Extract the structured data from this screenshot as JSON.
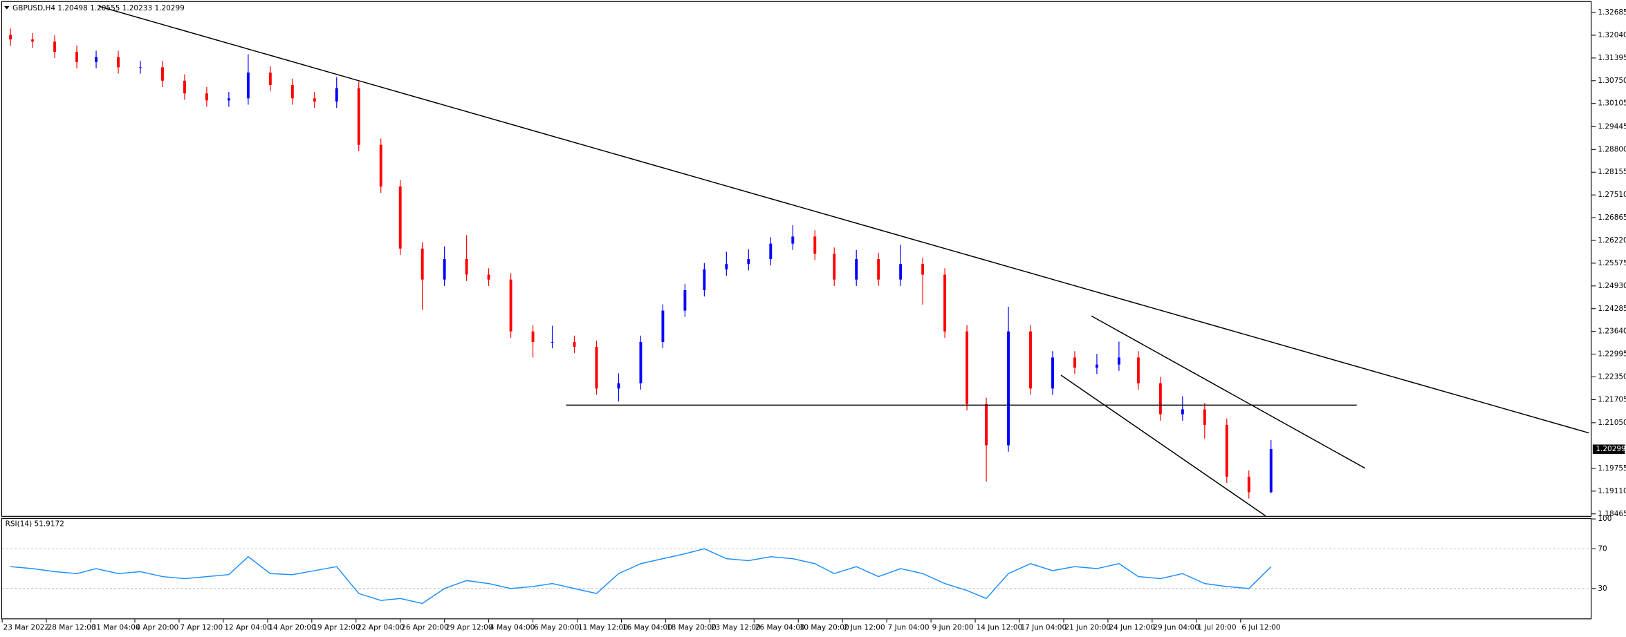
{
  "chart_data": {
    "type": "candlestick",
    "title": "GBPUSD,H4  1.20498 1.20555 1.20233 1.20299",
    "x": [
      3,
      11,
      19,
      27,
      34,
      42,
      50,
      58,
      66,
      74,
      82,
      89,
      97,
      105,
      113,
      121,
      129,
      137,
      144,
      152,
      160,
      168,
      176,
      184,
      192,
      199,
      207,
      215,
      223,
      231,
      239,
      247,
      254,
      262,
      270,
      278,
      286,
      294,
      301,
      309,
      317,
      325,
      333,
      341,
      349,
      356,
      364,
      372,
      380,
      388,
      396,
      404,
      411,
      419,
      427,
      435,
      443,
      451,
      459
    ],
    "open": [
      1.3205,
      1.3192,
      1.3186,
      1.3157,
      1.3128,
      1.3142,
      1.3113,
      1.3113,
      1.3075,
      1.3039,
      1.3019,
      1.3025,
      1.3098,
      1.3063,
      1.3025,
      1.3016,
      1.3054,
      1.2893,
      1.2775,
      1.2599,
      1.2511,
      1.2569,
      1.2525,
      1.2511,
      1.2364,
      1.2334,
      1.2334,
      1.232,
      1.2202,
      1.2217,
      1.2334,
      1.2423,
      1.2481,
      1.254,
      1.2555,
      1.2569,
      1.2613,
      1.2633,
      1.2584,
      1.2511,
      1.2569,
      1.2511,
      1.2555,
      1.2525,
      1.2364,
      1.2158,
      1.2041,
      1.2364,
      1.2202,
      1.229,
      1.2261,
      1.227,
      1.229,
      1.2217,
      1.2129,
      1.2143,
      1.2099,
      1.1952,
      1.1908
    ],
    "high": [
      1.3223,
      1.321,
      1.3204,
      1.3175,
      1.316,
      1.316,
      1.3131,
      1.3131,
      1.3093,
      1.3057,
      1.3043,
      1.315,
      1.3116,
      1.3081,
      1.3043,
      1.3085,
      1.3072,
      1.2911,
      1.2793,
      1.2617,
      1.2605,
      1.2637,
      1.2543,
      1.2529,
      1.2382,
      1.238,
      1.2352,
      1.2338,
      1.2245,
      1.2352,
      1.2441,
      1.2499,
      1.2558,
      1.259,
      1.2597,
      1.2631,
      1.2665,
      1.2651,
      1.2602,
      1.2595,
      1.2587,
      1.261,
      1.2573,
      1.2543,
      1.2382,
      1.2176,
      1.2434,
      1.2382,
      1.2308,
      1.2308,
      1.23,
      1.2335,
      1.2308,
      1.2235,
      1.218,
      1.2161,
      1.2117,
      1.197,
      1.2056
    ],
    "low": [
      1.3174,
      1.3168,
      1.3139,
      1.311,
      1.311,
      1.3095,
      1.3095,
      1.3057,
      1.3021,
      1.3001,
      1.3001,
      1.3007,
      1.3045,
      1.3007,
      1.2998,
      1.2998,
      1.2875,
      1.2757,
      1.2581,
      1.2425,
      1.2493,
      1.2507,
      1.2493,
      1.2346,
      1.229,
      1.2316,
      1.2302,
      1.2184,
      1.2165,
      1.2199,
      1.2316,
      1.2405,
      1.2463,
      1.2522,
      1.2537,
      1.2551,
      1.2595,
      1.2566,
      1.2493,
      1.2493,
      1.2493,
      1.2493,
      1.244,
      1.2346,
      1.214,
      1.1938,
      1.2023,
      1.2184,
      1.2184,
      1.2243,
      1.2243,
      1.2252,
      1.2199,
      1.2111,
      1.2111,
      1.206,
      1.1934,
      1.189,
      1.1905
    ],
    "close": [
      1.3192,
      1.3186,
      1.3157,
      1.3128,
      1.3142,
      1.3113,
      1.3113,
      1.3075,
      1.3039,
      1.3019,
      1.3025,
      1.3098,
      1.3063,
      1.3025,
      1.3016,
      1.3054,
      1.2893,
      1.2775,
      1.2599,
      1.2511,
      1.2569,
      1.2525,
      1.2511,
      1.2364,
      1.2334,
      1.2334,
      1.232,
      1.2202,
      1.2217,
      1.2334,
      1.2423,
      1.2481,
      1.254,
      1.2555,
      1.2569,
      1.2613,
      1.2633,
      1.2584,
      1.2511,
      1.2569,
      1.2511,
      1.2555,
      1.2525,
      1.2364,
      1.2158,
      1.2041,
      1.2364,
      1.2202,
      1.229,
      1.2261,
      1.227,
      1.229,
      1.2217,
      1.2129,
      1.2143,
      1.2099,
      1.1952,
      1.1908,
      1.203
    ],
    "up_color": "#0000ff",
    "down_color": "#ff0000",
    "xlim": [
      0,
      575
    ],
    "xticks": [
      {
        "value": 0,
        "label": "23 Mar 2022"
      },
      {
        "value": 16,
        "label": "28 Mar 12:00"
      },
      {
        "value": 32,
        "label": "31 Mar 04:00"
      },
      {
        "value": 48,
        "label": "4 Apr 20:00"
      },
      {
        "value": 64,
        "label": "7 Apr 12:00"
      },
      {
        "value": 80,
        "label": "12 Apr 04:00"
      },
      {
        "value": 96,
        "label": "14 Apr 20:00"
      },
      {
        "value": 112,
        "label": "19 Apr 12:00"
      },
      {
        "value": 128,
        "label": "22 Apr 04:00"
      },
      {
        "value": 144,
        "label": "26 Apr 20:00"
      },
      {
        "value": 160,
        "label": "29 Apr 12:00"
      },
      {
        "value": 176,
        "label": "4 May 04:00"
      },
      {
        "value": 192,
        "label": "6 May 20:00"
      },
      {
        "value": 208,
        "label": "11 May 12:00"
      },
      {
        "value": 224,
        "label": "16 May 04:00"
      },
      {
        "value": 240,
        "label": "18 May 20:00"
      },
      {
        "value": 256,
        "label": "23 May 12:00"
      },
      {
        "value": 272,
        "label": "26 May 04:00"
      },
      {
        "value": 288,
        "label": "30 May 20:00"
      },
      {
        "value": 304,
        "label": "2 Jun 12:00"
      },
      {
        "value": 320,
        "label": "7 Jun 04:00"
      },
      {
        "value": 336,
        "label": "9 Jun 20:00"
      },
      {
        "value": 352,
        "label": "14 Jun 12:00"
      },
      {
        "value": 368,
        "label": "17 Jun 04:00"
      },
      {
        "value": 384,
        "label": "21 Jun 20:00"
      },
      {
        "value": 400,
        "label": "24 Jun 12:00"
      },
      {
        "value": 416,
        "label": "29 Jun 04:00"
      },
      {
        "value": 432,
        "label": "1 Jul 20:00"
      },
      {
        "value": 448,
        "label": "6 Jul 12:00"
      }
    ],
    "ylim": [
      1.1841,
      1.3298
    ],
    "yticks": [
      1.32685,
      {
        "value": 1.3204,
        "label": "1.32040"
      },
      1.31395,
      {
        "value": 1.3075,
        "label": "1.30750"
      },
      1.30105,
      1.29445,
      {
        "value": 1.288,
        "label": "1.28800"
      },
      1.28155,
      {
        "value": 1.2751,
        "label": "1.27510"
      },
      1.26865,
      {
        "value": 1.2622,
        "label": "1.26220"
      },
      1.25575,
      {
        "value": 1.2493,
        "label": "1.24930"
      },
      1.24285,
      {
        "value": 1.2364,
        "label": "1.23640"
      },
      1.22995,
      {
        "value": 1.2235,
        "label": "1.22350"
      },
      1.21705,
      {
        "value": 1.2105,
        "label": "1.21050"
      },
      1.19755,
      {
        "value": 1.1911,
        "label": "1.19110"
      },
      1.18465
    ],
    "current_price": 1.20299,
    "line_color": "#000000",
    "lines": [
      {
        "x": [
          35,
          574
        ],
        "y": [
          1.3286,
          1.2076
        ]
      },
      {
        "x": [
          204,
          490
        ],
        "y": [
          1.2155,
          1.2155
        ]
      },
      {
        "x": [
          394,
          493
        ],
        "y": [
          1.2408,
          1.1976
        ]
      },
      {
        "x": [
          383,
          457
        ],
        "y": [
          1.224,
          1.1841
        ]
      }
    ],
    "rsi": {
      "title": "RSI(14) 51.9172",
      "color": "#1e90ff",
      "values": [
        52,
        50,
        47,
        45,
        50,
        45,
        47,
        42,
        40,
        42,
        44,
        62,
        45,
        44,
        48,
        52,
        25,
        18,
        20,
        15,
        30,
        38,
        35,
        30,
        32,
        35,
        30,
        25,
        45,
        55,
        60,
        65,
        70,
        60,
        58,
        62,
        60,
        55,
        45,
        52,
        42,
        50,
        45,
        35,
        28,
        20,
        45,
        55,
        48,
        52,
        50,
        55,
        42,
        40,
        45,
        35,
        32,
        30,
        51.9172
      ],
      "ylim": [
        0,
        100
      ],
      "yticks": [
        100,
        70,
        30
      ],
      "levels": [
        70,
        30
      ]
    }
  }
}
